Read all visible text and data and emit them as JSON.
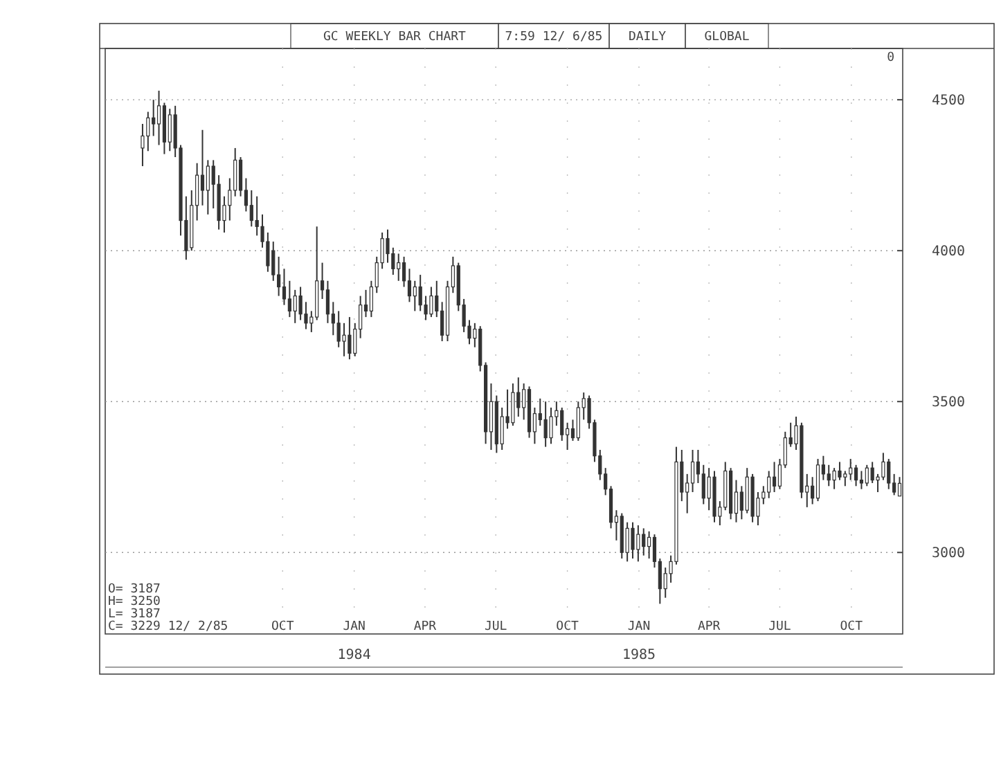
{
  "chart_data": {
    "type": "candlestick",
    "title": "GC WEEKLY BAR CHART",
    "annotations": [
      "7:59 12/ 6/85",
      "DAILY",
      "GLOBAL",
      "0",
      "O= 3187",
      "H= 3250",
      "L= 3187",
      "C= 3229 12/ 2/85"
    ],
    "x": [
      "1983-04-04",
      "1983-04-11",
      "1983-04-18",
      "1983-04-25",
      "1983-05-02",
      "1983-05-09",
      "1983-05-16",
      "1983-05-23",
      "1983-05-30",
      "1983-06-06",
      "1983-06-13",
      "1983-06-20",
      "1983-06-27",
      "1983-07-04",
      "1983-07-11",
      "1983-07-18",
      "1983-07-25",
      "1983-08-01",
      "1983-08-08",
      "1983-08-15",
      "1983-08-22",
      "1983-08-29",
      "1983-09-05",
      "1983-09-12",
      "1983-09-19",
      "1983-09-26",
      "1983-10-03",
      "1983-10-10",
      "1983-10-17",
      "1983-10-24",
      "1983-10-31",
      "1983-11-07",
      "1983-11-14",
      "1983-11-21",
      "1983-11-28",
      "1983-12-05",
      "1983-12-12",
      "1983-12-19",
      "1983-12-26",
      "1984-01-02",
      "1984-01-09",
      "1984-01-16",
      "1984-01-23",
      "1984-01-30",
      "1984-02-06",
      "1984-02-13",
      "1984-02-20",
      "1984-02-27",
      "1984-03-05",
      "1984-03-12",
      "1984-03-19",
      "1984-03-26",
      "1984-04-02",
      "1984-04-09",
      "1984-04-16",
      "1984-04-23",
      "1984-04-30",
      "1984-05-07",
      "1984-05-14",
      "1984-05-21",
      "1984-05-28",
      "1984-06-04",
      "1984-06-11",
      "1984-06-18",
      "1984-06-25",
      "1984-07-02",
      "1984-07-09",
      "1984-07-16",
      "1984-07-23",
      "1984-07-30",
      "1984-08-06",
      "1984-08-13",
      "1984-08-20",
      "1984-08-27",
      "1984-09-03",
      "1984-09-10",
      "1984-09-17",
      "1984-09-24",
      "1984-10-01",
      "1984-10-08",
      "1984-10-15",
      "1984-10-22",
      "1984-10-29",
      "1984-11-05",
      "1984-11-12",
      "1984-11-19",
      "1984-11-26",
      "1984-12-03",
      "1984-12-10",
      "1984-12-17",
      "1984-12-24",
      "1984-12-31",
      "1985-01-07",
      "1985-01-14",
      "1985-01-21",
      "1985-01-28",
      "1985-02-04",
      "1985-02-11",
      "1985-02-18",
      "1985-02-25",
      "1985-03-04",
      "1985-03-11",
      "1985-03-18",
      "1985-03-25",
      "1985-04-01",
      "1985-04-08",
      "1985-04-15",
      "1985-04-22",
      "1985-04-29",
      "1985-05-06",
      "1985-05-13",
      "1985-05-20",
      "1985-05-27",
      "1985-06-03",
      "1985-06-10",
      "1985-06-17",
      "1985-06-24",
      "1985-07-01",
      "1985-07-08",
      "1985-07-15",
      "1985-07-22",
      "1985-07-29",
      "1985-08-05",
      "1985-08-12",
      "1985-08-19",
      "1985-08-26",
      "1985-09-02",
      "1985-09-09",
      "1985-09-16",
      "1985-09-23",
      "1985-09-30",
      "1985-10-07",
      "1985-10-14",
      "1985-10-21",
      "1985-10-28",
      "1985-11-04",
      "1985-11-11",
      "1985-11-18",
      "1985-11-25",
      "1985-12-02"
    ],
    "series": [
      {
        "color": "#333333",
        "ohlc": [
          [
            4340,
            4420,
            4280,
            4380
          ],
          [
            4380,
            4460,
            4330,
            4440
          ],
          [
            4440,
            4500,
            4380,
            4420
          ],
          [
            4420,
            4530,
            4350,
            4480
          ],
          [
            4480,
            4490,
            4320,
            4360
          ],
          [
            4360,
            4470,
            4330,
            4450
          ],
          [
            4450,
            4480,
            4310,
            4340
          ],
          [
            4340,
            4350,
            4050,
            4100
          ],
          [
            4100,
            4180,
            3970,
            4000
          ],
          [
            4010,
            4200,
            4000,
            4150
          ],
          [
            4150,
            4290,
            4100,
            4250
          ],
          [
            4250,
            4400,
            4150,
            4200
          ],
          [
            4200,
            4300,
            4120,
            4280
          ],
          [
            4280,
            4300,
            4140,
            4220
          ],
          [
            4220,
            4250,
            4070,
            4100
          ],
          [
            4100,
            4180,
            4060,
            4150
          ],
          [
            4150,
            4240,
            4100,
            4200
          ],
          [
            4200,
            4340,
            4180,
            4300
          ],
          [
            4300,
            4310,
            4180,
            4200
          ],
          [
            4200,
            4240,
            4130,
            4150
          ],
          [
            4150,
            4200,
            4080,
            4100
          ],
          [
            4100,
            4180,
            4050,
            4080
          ],
          [
            4080,
            4120,
            4010,
            4030
          ],
          [
            4030,
            4060,
            3930,
            3950
          ],
          [
            4000,
            4030,
            3900,
            3920
          ],
          [
            3920,
            3980,
            3850,
            3880
          ],
          [
            3880,
            3940,
            3820,
            3840
          ],
          [
            3840,
            3900,
            3780,
            3800
          ],
          [
            3800,
            3870,
            3760,
            3850
          ],
          [
            3850,
            3880,
            3770,
            3790
          ],
          [
            3790,
            3830,
            3740,
            3760
          ],
          [
            3760,
            3800,
            3730,
            3780
          ],
          [
            3780,
            4080,
            3770,
            3900
          ],
          [
            3900,
            3960,
            3840,
            3870
          ],
          [
            3870,
            3900,
            3760,
            3790
          ],
          [
            3790,
            3830,
            3720,
            3760
          ],
          [
            3760,
            3800,
            3680,
            3700
          ],
          [
            3700,
            3760,
            3650,
            3720
          ],
          [
            3720,
            3780,
            3640,
            3660
          ],
          [
            3660,
            3760,
            3650,
            3740
          ],
          [
            3740,
            3850,
            3710,
            3820
          ],
          [
            3820,
            3870,
            3780,
            3800
          ],
          [
            3800,
            3900,
            3780,
            3880
          ],
          [
            3880,
            3980,
            3860,
            3960
          ],
          [
            3960,
            4060,
            3940,
            4040
          ],
          [
            4040,
            4070,
            3960,
            3990
          ],
          [
            3990,
            4010,
            3920,
            3940
          ],
          [
            3940,
            3990,
            3900,
            3960
          ],
          [
            3960,
            3980,
            3880,
            3900
          ],
          [
            3900,
            3940,
            3830,
            3850
          ],
          [
            3850,
            3900,
            3800,
            3880
          ],
          [
            3880,
            3920,
            3800,
            3820
          ],
          [
            3820,
            3850,
            3770,
            3790
          ],
          [
            3790,
            3880,
            3780,
            3850
          ],
          [
            3850,
            3900,
            3780,
            3800
          ],
          [
            3800,
            3830,
            3700,
            3720
          ],
          [
            3720,
            3900,
            3700,
            3880
          ],
          [
            3880,
            3980,
            3860,
            3950
          ],
          [
            3950,
            3960,
            3800,
            3820
          ],
          [
            3820,
            3840,
            3730,
            3750
          ],
          [
            3750,
            3770,
            3690,
            3710
          ],
          [
            3710,
            3760,
            3680,
            3740
          ],
          [
            3740,
            3750,
            3600,
            3620
          ],
          [
            3620,
            3630,
            3360,
            3400
          ],
          [
            3400,
            3560,
            3340,
            3500
          ],
          [
            3500,
            3520,
            3330,
            3360
          ],
          [
            3360,
            3480,
            3340,
            3450
          ],
          [
            3450,
            3540,
            3410,
            3430
          ],
          [
            3430,
            3560,
            3420,
            3530
          ],
          [
            3530,
            3580,
            3450,
            3480
          ],
          [
            3480,
            3560,
            3440,
            3540
          ],
          [
            3540,
            3550,
            3380,
            3400
          ],
          [
            3400,
            3480,
            3360,
            3460
          ],
          [
            3460,
            3510,
            3420,
            3440
          ],
          [
            3440,
            3500,
            3350,
            3380
          ],
          [
            3380,
            3480,
            3360,
            3450
          ],
          [
            3450,
            3500,
            3420,
            3470
          ],
          [
            3470,
            3480,
            3370,
            3390
          ],
          [
            3390,
            3430,
            3340,
            3410
          ],
          [
            3410,
            3440,
            3370,
            3380
          ],
          [
            3380,
            3500,
            3370,
            3480
          ],
          [
            3480,
            3530,
            3440,
            3510
          ],
          [
            3510,
            3520,
            3410,
            3430
          ],
          [
            3430,
            3440,
            3300,
            3320
          ],
          [
            3320,
            3340,
            3240,
            3260
          ],
          [
            3260,
            3280,
            3190,
            3210
          ],
          [
            3210,
            3220,
            3080,
            3100
          ],
          [
            3100,
            3140,
            3040,
            3120
          ],
          [
            3120,
            3130,
            2980,
            3000
          ],
          [
            3000,
            3100,
            2970,
            3080
          ],
          [
            3080,
            3100,
            2980,
            3010
          ],
          [
            3010,
            3090,
            2970,
            3060
          ],
          [
            3060,
            3080,
            2990,
            3020
          ],
          [
            3020,
            3070,
            2980,
            3050
          ],
          [
            3050,
            3060,
            2950,
            2970
          ],
          [
            2970,
            2980,
            2830,
            2880
          ],
          [
            2880,
            2950,
            2850,
            2930
          ],
          [
            2930,
            2990,
            2900,
            2970
          ],
          [
            2970,
            3350,
            2960,
            3300
          ],
          [
            3300,
            3340,
            3170,
            3200
          ],
          [
            3200,
            3260,
            3130,
            3230
          ],
          [
            3230,
            3340,
            3200,
            3300
          ],
          [
            3300,
            3340,
            3230,
            3260
          ],
          [
            3260,
            3290,
            3160,
            3180
          ],
          [
            3180,
            3280,
            3140,
            3250
          ],
          [
            3250,
            3270,
            3100,
            3120
          ],
          [
            3120,
            3170,
            3090,
            3150
          ],
          [
            3150,
            3300,
            3140,
            3270
          ],
          [
            3270,
            3280,
            3110,
            3130
          ],
          [
            3130,
            3240,
            3100,
            3200
          ],
          [
            3200,
            3220,
            3110,
            3140
          ],
          [
            3140,
            3280,
            3130,
            3250
          ],
          [
            3250,
            3260,
            3100,
            3120
          ],
          [
            3120,
            3200,
            3090,
            3180
          ],
          [
            3180,
            3220,
            3160,
            3200
          ],
          [
            3200,
            3270,
            3180,
            3250
          ],
          [
            3250,
            3300,
            3200,
            3220
          ],
          [
            3220,
            3310,
            3210,
            3290
          ],
          [
            3290,
            3400,
            3280,
            3380
          ],
          [
            3380,
            3430,
            3350,
            3360
          ],
          [
            3360,
            3450,
            3340,
            3420
          ],
          [
            3420,
            3430,
            3180,
            3200
          ],
          [
            3200,
            3260,
            3150,
            3220
          ],
          [
            3220,
            3250,
            3160,
            3180
          ],
          [
            3180,
            3310,
            3170,
            3290
          ],
          [
            3290,
            3320,
            3240,
            3260
          ],
          [
            3260,
            3290,
            3220,
            3240
          ],
          [
            3240,
            3280,
            3210,
            3270
          ],
          [
            3270,
            3300,
            3240,
            3250
          ],
          [
            3250,
            3270,
            3220,
            3260
          ],
          [
            3260,
            3310,
            3240,
            3280
          ],
          [
            3280,
            3290,
            3220,
            3240
          ],
          [
            3240,
            3270,
            3210,
            3230
          ],
          [
            3230,
            3290,
            3220,
            3280
          ],
          [
            3280,
            3300,
            3230,
            3240
          ],
          [
            3240,
            3260,
            3200,
            3250
          ],
          [
            3250,
            3330,
            3240,
            3300
          ],
          [
            3300,
            3310,
            3210,
            3230
          ],
          [
            3230,
            3260,
            3190,
            3200
          ],
          [
            3187,
            3250,
            3187,
            3229
          ]
        ]
      }
    ],
    "xlim": [
      "1983-02-15",
      "1985-12-06"
    ],
    "xticks": [
      {
        "value": "1983-10-01",
        "label": "OCT"
      },
      {
        "value": "1984-01-01",
        "label": "JAN\n1984"
      },
      {
        "value": "1984-04-01",
        "label": "APR"
      },
      {
        "value": "1984-07-01",
        "label": "JUL"
      },
      {
        "value": "1984-10-01",
        "label": "OCT"
      },
      {
        "value": "1985-01-01",
        "label": "JAN\n1985"
      },
      {
        "value": "1985-04-01",
        "label": "APR"
      },
      {
        "value": "1985-07-01",
        "label": "JUL"
      },
      {
        "value": "1985-10-01",
        "label": "OCT"
      }
    ],
    "ylim": [
      2730,
      4670
    ],
    "yticks": [
      3000,
      3500,
      4000,
      4500
    ],
    "grid": true
  }
}
